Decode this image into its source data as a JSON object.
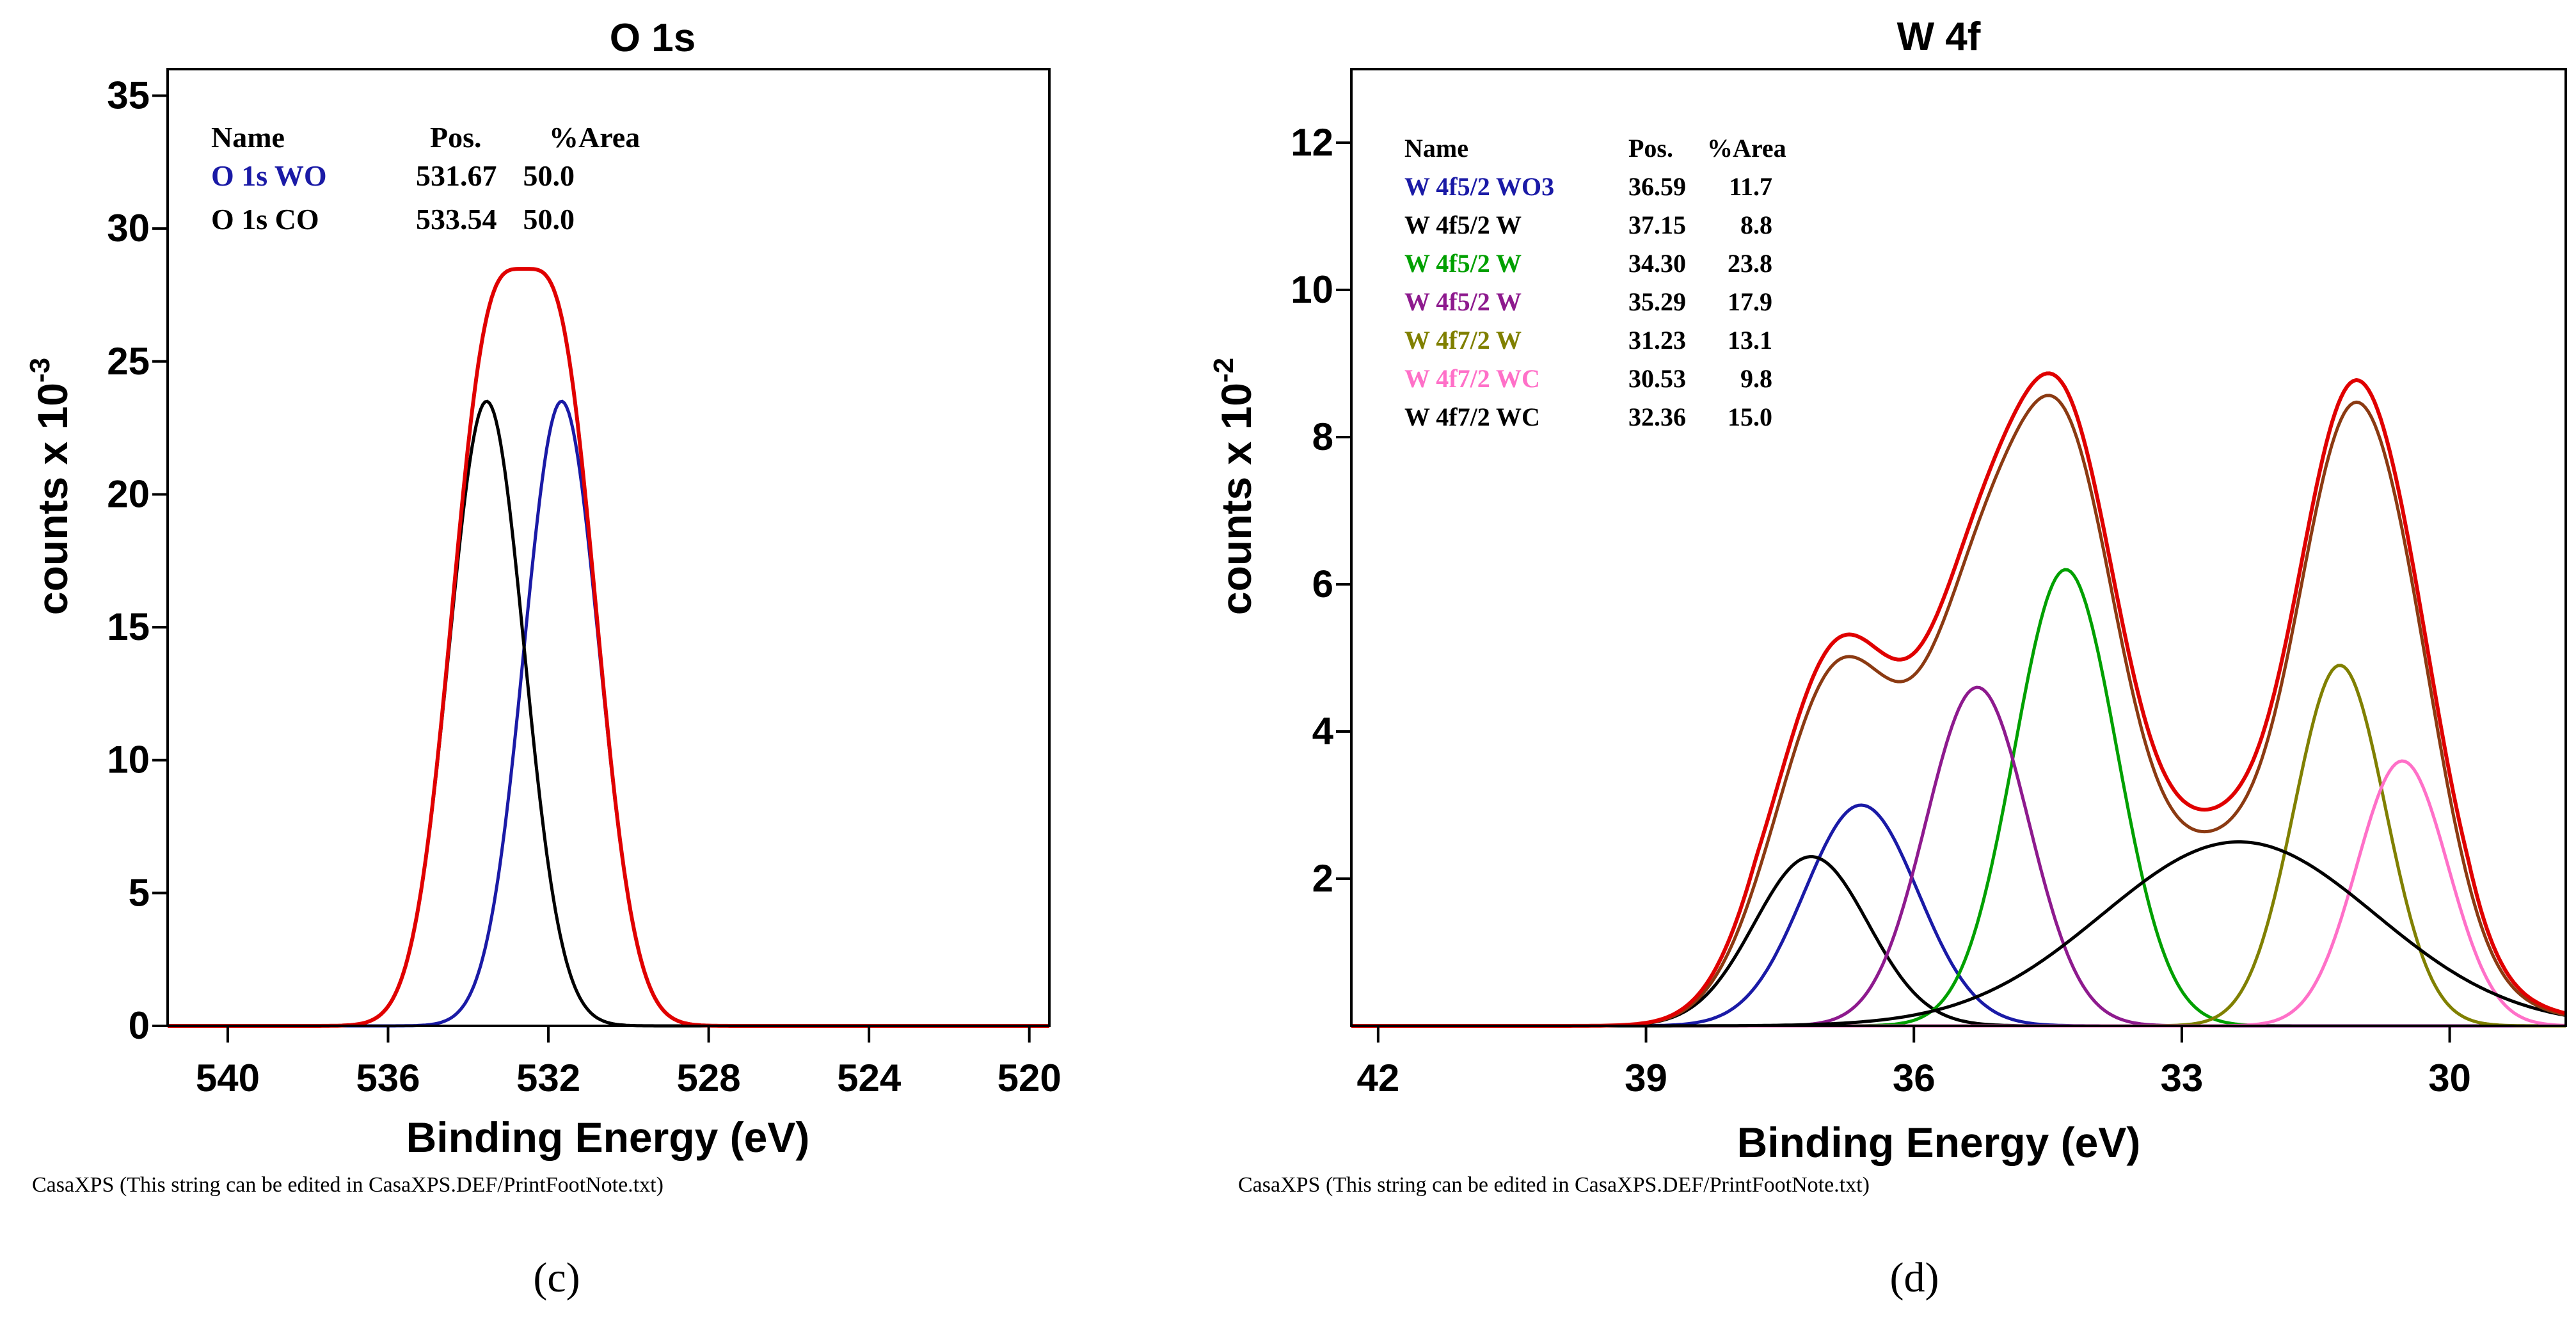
{
  "chart_data": [
    {
      "type": "line",
      "panel_label": "(c)",
      "title": "O 1s",
      "xlabel": "Binding Energy (eV)",
      "ylabel": "counts x 10",
      "ylabel_exponent": "-3",
      "xlim": [
        541.5,
        519.5
      ],
      "ylim": [
        0,
        36
      ],
      "x_ticks": [
        540,
        536,
        532,
        528,
        524,
        520
      ],
      "x_tick_labels": [
        "540",
        "536",
        "532",
        "528",
        "524",
        "520"
      ],
      "y_ticks": [
        0,
        5,
        10,
        15,
        20,
        25,
        30,
        35
      ],
      "y_tick_labels": [
        "0",
        "5",
        "10",
        "15",
        "20",
        "25",
        "30",
        "35"
      ],
      "footnote": "CasaXPS (This string can be edited in CasaXPS.DEF/PrintFootNote.txt)",
      "legend": {
        "headers": [
          "Name",
          "Pos.",
          "%Area"
        ],
        "rows": [
          {
            "name": "O 1s WO",
            "pos": "531.67",
            "area": "50.0",
            "color": "#1a1aa6"
          },
          {
            "name": "O 1s CO",
            "pos": "533.54",
            "area": "50.0",
            "color": "#000000"
          }
        ]
      },
      "peaks": [
        {
          "name": "O 1s WO",
          "center": 531.67,
          "height": 23.5,
          "fwhm": 2.2,
          "color": "#1a1aa6"
        },
        {
          "name": "O 1s CO",
          "center": 533.54,
          "height": 23.5,
          "fwhm": 2.2,
          "color": "#000000"
        }
      ],
      "envelope": {
        "color": "#8b3a12",
        "offset": 0.2
      },
      "data_curve": {
        "color": "#e00000"
      }
    },
    {
      "type": "line",
      "panel_label": "(d)",
      "title": "W 4f",
      "xlabel": "Binding Energy (eV)",
      "ylabel": "counts x 10",
      "ylabel_exponent": "-2",
      "xlim": [
        42.3,
        28.7
      ],
      "ylim": [
        0,
        13
      ],
      "x_ticks": [
        42,
        39,
        36,
        33,
        30
      ],
      "x_tick_labels": [
        "42",
        "39",
        "36",
        "33",
        "30"
      ],
      "y_ticks": [
        2,
        4,
        6,
        8,
        10,
        12
      ],
      "y_tick_labels": [
        "2",
        "4",
        "6",
        "8",
        "10",
        "12"
      ],
      "footnote": "CasaXPS (This string can be edited in CasaXPS.DEF/PrintFootNote.txt)",
      "legend": {
        "headers": [
          "Name",
          "Pos.",
          "%Area"
        ],
        "rows": [
          {
            "name": "W 4f5/2 WO3",
            "pos": "36.59",
            "area": "11.7",
            "color": "#1a1aa6"
          },
          {
            "name": "W 4f5/2 W",
            "pos": "37.15",
            "area": "8.8",
            "color": "#000000"
          },
          {
            "name": "W 4f5/2 W",
            "pos": "34.30",
            "area": "23.8",
            "color": "#00a000"
          },
          {
            "name": "W 4f5/2 W",
            "pos": "35.29",
            "area": "17.9",
            "color": "#8e1a8e"
          },
          {
            "name": "W 4f7/2 W",
            "pos": "31.23",
            "area": "13.1",
            "color": "#808000"
          },
          {
            "name": "W 4f7/2 WC",
            "pos": "30.53",
            "area": "9.8",
            "color": "#ff70c8"
          },
          {
            "name": "W 4f7/2 WC",
            "pos": "32.36",
            "area": "15.0",
            "color": "#000000"
          }
        ]
      },
      "peaks": [
        {
          "name": "W 4f5/2 WO3",
          "center": 36.59,
          "height": 3.0,
          "fwhm": 1.5,
          "color": "#1a1aa6"
        },
        {
          "name": "W 4f5/2 W",
          "center": 37.15,
          "height": 2.3,
          "fwhm": 1.5,
          "color": "#000000"
        },
        {
          "name": "W 4f5/2 W",
          "center": 34.3,
          "height": 6.2,
          "fwhm": 1.35,
          "color": "#00a000"
        },
        {
          "name": "W 4f5/2 W",
          "center": 35.29,
          "height": 4.6,
          "fwhm": 1.35,
          "color": "#8e1a8e"
        },
        {
          "name": "W 4f7/2 W",
          "center": 31.23,
          "height": 4.9,
          "fwhm": 1.2,
          "color": "#808000"
        },
        {
          "name": "W 4f7/2 WC",
          "center": 30.53,
          "height": 3.6,
          "fwhm": 1.2,
          "color": "#ff70c8"
        },
        {
          "name": "W 4f7/2 WC",
          "center": 32.36,
          "height": 2.5,
          "fwhm": 3.6,
          "color": "#000000"
        }
      ],
      "envelope": {
        "color": "#8b3a12",
        "offset": 0
      },
      "data_curve": {
        "color": "#e00000",
        "offset": 0.3
      }
    }
  ]
}
